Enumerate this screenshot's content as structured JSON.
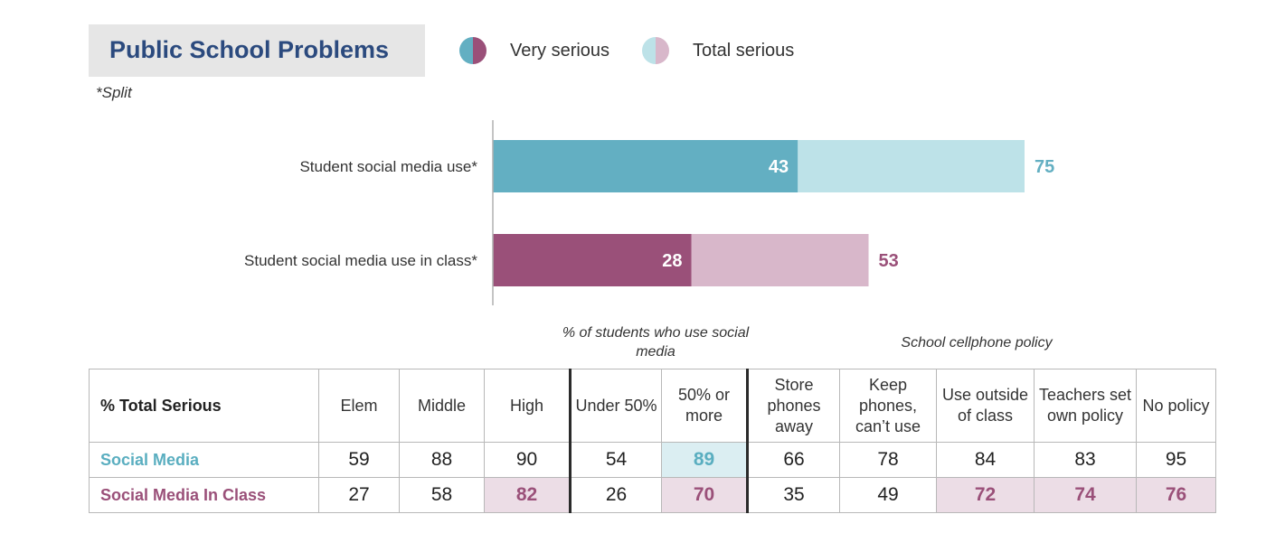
{
  "header": {
    "title": "Public School Problems",
    "note": "*Split"
  },
  "legend": [
    {
      "label": "Very serious",
      "colors": [
        "#63afc2",
        "#9a5079"
      ]
    },
    {
      "label": "Total serious",
      "colors": [
        "#bde2e8",
        "#d8b7ca"
      ]
    }
  ],
  "chart_data": {
    "type": "bar",
    "orientation": "horizontal",
    "title": "Public School Problems",
    "note": "*Split",
    "categories": [
      "Student social media use*",
      "Student social media use in class*"
    ],
    "series": [
      {
        "name": "Very serious",
        "values": [
          43,
          28
        ],
        "colors": [
          "#63afc2",
          "#9a5079"
        ]
      },
      {
        "name": "Total serious",
        "values": [
          75,
          53
        ],
        "colors": [
          "#bde2e8",
          "#d8b7ca"
        ]
      }
    ],
    "label_colors": [
      "#63afc2",
      "#9a5079"
    ],
    "xlim": [
      0,
      75
    ],
    "grid": false,
    "legend_position": "top"
  },
  "table": {
    "group_captions": {
      "students": "% of students who use social media",
      "policy": "School cellphone policy"
    },
    "corner": "% Total Serious",
    "columns": [
      "Elem",
      "Middle",
      "High",
      "Under 50%",
      "50% or more",
      "Store phones away",
      "Keep phones, can’t use",
      "Use outside of class",
      "Teachers set own policy",
      "No policy"
    ],
    "rows": [
      {
        "label": "Social Media",
        "color": "#5aaec0",
        "values": [
          "59",
          "88",
          "90",
          "54",
          "89",
          "66",
          "78",
          "84",
          "83",
          "95"
        ],
        "highlight": [
          false,
          false,
          false,
          false,
          true,
          false,
          false,
          false,
          false,
          false
        ]
      },
      {
        "label": "Social Media In Class",
        "color": "#9a5079",
        "values": [
          "27",
          "58",
          "82",
          "26",
          "70",
          "35",
          "49",
          "72",
          "74",
          "76"
        ],
        "highlight": [
          false,
          false,
          true,
          false,
          true,
          false,
          false,
          true,
          true,
          true
        ]
      }
    ]
  }
}
